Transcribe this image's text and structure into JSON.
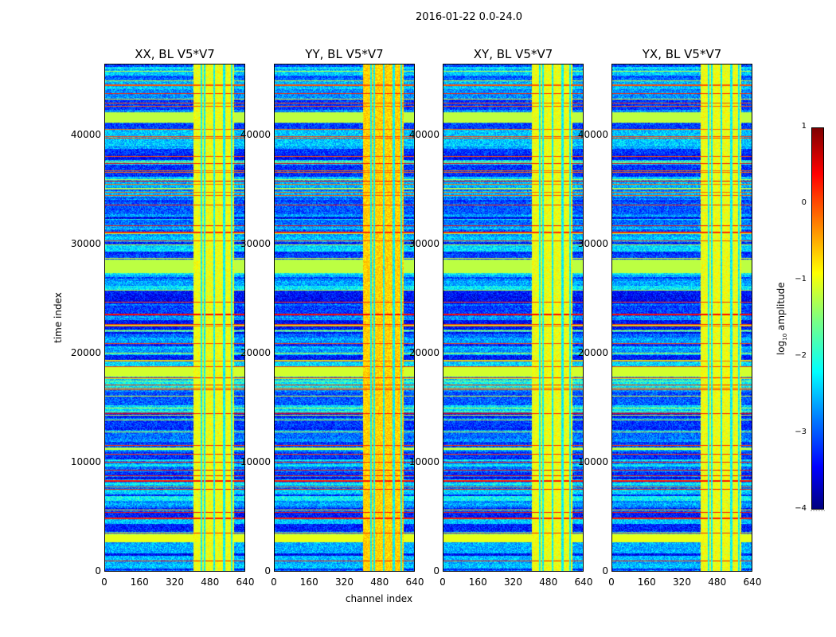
{
  "chart_data": {
    "type": "heatmap",
    "title": "2016-01-22 0.0-24.0",
    "xlabel": "channel index",
    "ylabel": "time index",
    "xlim": [
      0,
      640
    ],
    "ylim": [
      0,
      46600
    ],
    "xticks": [
      "0",
      "160",
      "320",
      "480",
      "640"
    ],
    "yticks": [
      "0",
      "10000",
      "20000",
      "30000",
      "40000"
    ],
    "panels": [
      {
        "title": "XX, BL V5*V7"
      },
      {
        "title": "YY, BL V5*V7"
      },
      {
        "title": "XY, BL V5*V7"
      },
      {
        "title": "YX, BL V5*V7"
      }
    ],
    "colorbar": {
      "label_main": "log",
      "label_sub": "10",
      "label_rest": " amplitude",
      "colormap": "jet",
      "range": [
        -4,
        1
      ],
      "ticks": [
        "1",
        "0",
        "−1",
        "−2",
        "−3",
        "−4"
      ]
    },
    "bright_channel_range": [
      405,
      590
    ],
    "grid": false
  }
}
